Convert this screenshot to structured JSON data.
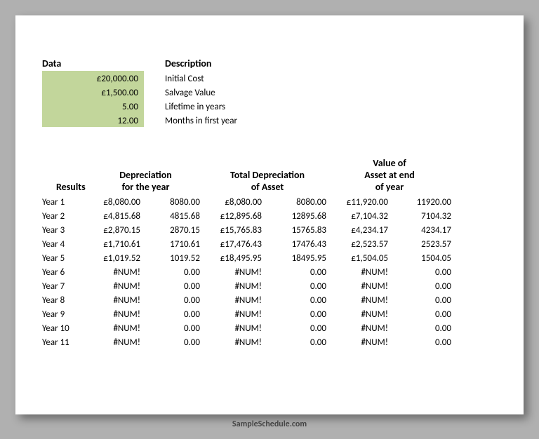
{
  "data_header": "Data",
  "desc_header": "Description",
  "data_values": [
    "£20,000.00",
    "£1,500.00",
    "5.00",
    "12.00"
  ],
  "desc_values": [
    "Initial Cost",
    "Salvage Value",
    "Lifetime in years",
    "Months in first year"
  ],
  "results_header": "Results",
  "h_dep": "Depreciation\nfor the year",
  "h_tot": "Total Depreciation\nof Asset",
  "h_val": "Value of\nAsset at end\nof year",
  "rows": [
    {
      "y": "Year 1",
      "a": "£8,080.00",
      "b": "8080.00",
      "c": "£8,080.00",
      "d": "8080.00",
      "e": "£11,920.00",
      "f": "11920.00"
    },
    {
      "y": "Year 2",
      "a": "£4,815.68",
      "b": "4815.68",
      "c": "£12,895.68",
      "d": "12895.68",
      "e": "£7,104.32",
      "f": "7104.32"
    },
    {
      "y": "Year 3",
      "a": "£2,870.15",
      "b": "2870.15",
      "c": "£15,765.83",
      "d": "15765.83",
      "e": "£4,234.17",
      "f": "4234.17"
    },
    {
      "y": "Year 4",
      "a": "£1,710.61",
      "b": "1710.61",
      "c": "£17,476.43",
      "d": "17476.43",
      "e": "£2,523.57",
      "f": "2523.57"
    },
    {
      "y": "Year 5",
      "a": "£1,019.52",
      "b": "1019.52",
      "c": "£18,495.95",
      "d": "18495.95",
      "e": "£1,504.05",
      "f": "1504.05"
    },
    {
      "y": "Year 6",
      "a": "#NUM!",
      "b": "0.00",
      "c": "#NUM!",
      "d": "0.00",
      "e": "#NUM!",
      "f": "0.00"
    },
    {
      "y": "Year 7",
      "a": "#NUM!",
      "b": "0.00",
      "c": "#NUM!",
      "d": "0.00",
      "e": "#NUM!",
      "f": "0.00"
    },
    {
      "y": "Year 8",
      "a": "#NUM!",
      "b": "0.00",
      "c": "#NUM!",
      "d": "0.00",
      "e": "#NUM!",
      "f": "0.00"
    },
    {
      "y": "Year 9",
      "a": "#NUM!",
      "b": "0.00",
      "c": "#NUM!",
      "d": "0.00",
      "e": "#NUM!",
      "f": "0.00"
    },
    {
      "y": "Year 10",
      "a": "#NUM!",
      "b": "0.00",
      "c": "#NUM!",
      "d": "0.00",
      "e": "#NUM!",
      "f": "0.00"
    },
    {
      "y": "Year 11",
      "a": "#NUM!",
      "b": "0.00",
      "c": "#NUM!",
      "d": "0.00",
      "e": "#NUM!",
      "f": "0.00"
    }
  ],
  "watermark": "SampleSchedule.com",
  "colors": {
    "page_bg": "#b0b0b0",
    "sheet_bg": "#ffffff",
    "data_fill": "#c2d69b"
  }
}
